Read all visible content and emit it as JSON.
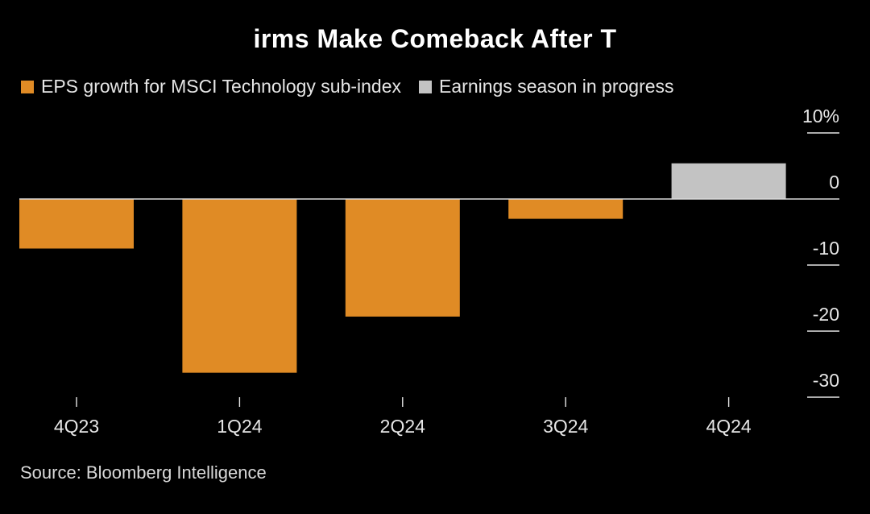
{
  "chart_data": {
    "type": "bar",
    "title": "irms Make Comeback After T",
    "categories": [
      "4Q23",
      "1Q24",
      "2Q24",
      "3Q24",
      "4Q24"
    ],
    "series": [
      {
        "name": "EPS growth for MSCI Technology sub-index",
        "values": [
          -7.5,
          -26.3,
          -17.8,
          -3.0,
          null
        ],
        "color": "#e08b25"
      },
      {
        "name": "Earnings season in progress",
        "values": [
          null,
          null,
          null,
          null,
          5.4
        ],
        "color": "#c3c3c3"
      }
    ],
    "y_ticks": [
      {
        "value": 10,
        "label": "10%"
      },
      {
        "value": 0,
        "label": "0"
      },
      {
        "value": -10,
        "label": "-10"
      },
      {
        "value": -20,
        "label": "-20"
      },
      {
        "value": -30,
        "label": "-30"
      }
    ],
    "ylim": [
      -30,
      10
    ],
    "xlabel": "",
    "ylabel": "",
    "legend_position": "top-left",
    "grid": false,
    "source": "Source: Bloomberg Intelligence"
  }
}
